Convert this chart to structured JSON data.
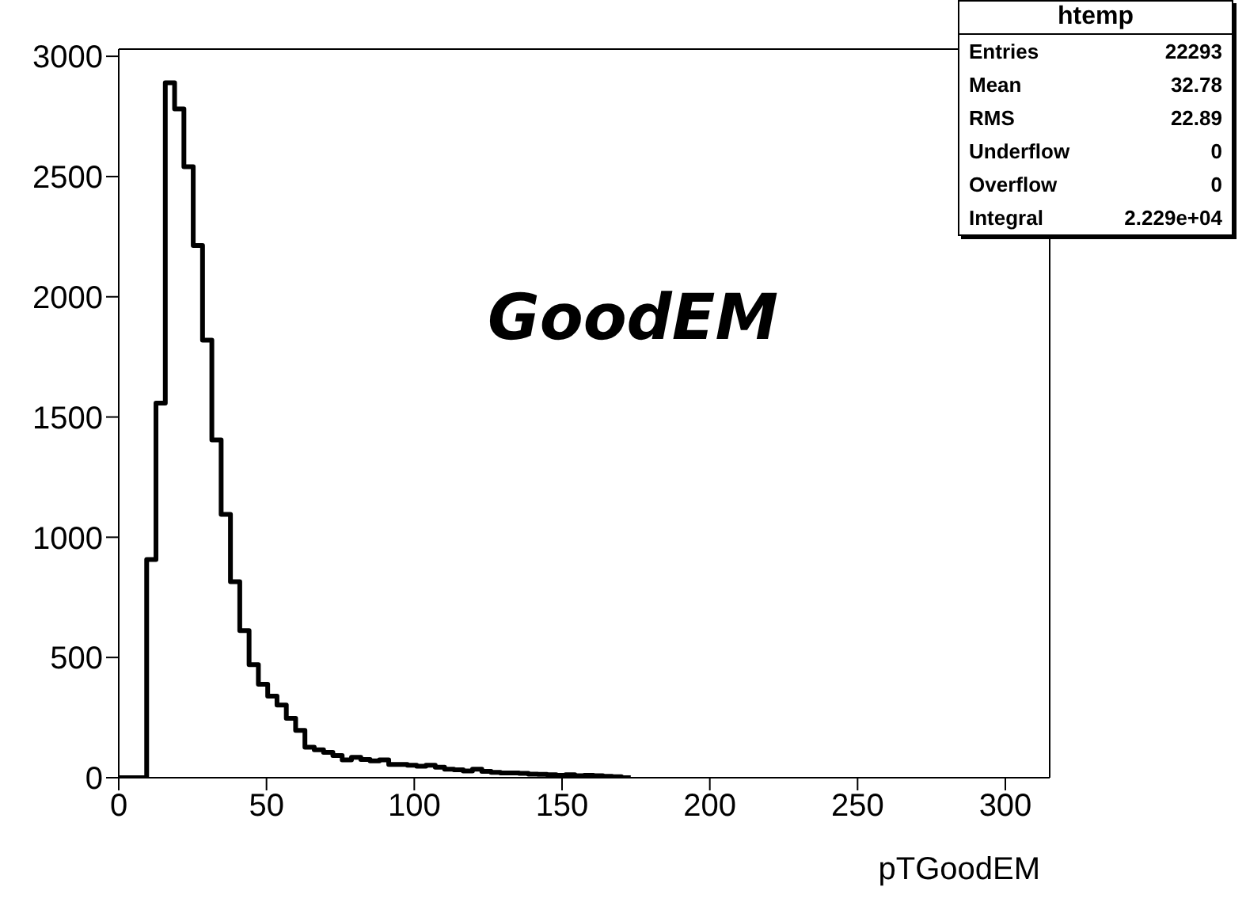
{
  "chart_data": {
    "type": "histogram",
    "xlabel": "pTGoodEM",
    "annotations": [
      "GoodEM",
      "htemp",
      "Entries 22293",
      "Mean 32.78",
      "RMS 22.89",
      "Underflow 0",
      "Overflow 0",
      "Integral 2.229e+04"
    ],
    "bins": [
      0,
      3.15,
      6.3,
      9.45,
      12.6,
      15.75,
      18.9,
      22.05,
      25.2,
      28.35,
      31.5,
      34.65,
      37.8,
      40.95,
      44.1,
      47.25,
      50.4,
      53.55,
      56.7,
      59.85,
      63,
      66.15,
      69.3,
      72.45,
      75.6,
      78.75,
      81.9,
      85.05,
      88.2,
      91.35,
      94.5,
      97.65,
      100.8,
      103.95,
      107.1,
      110.25,
      113.4,
      116.55,
      119.7,
      122.85,
      126,
      129.15,
      132.3,
      135.45,
      138.6,
      141.75,
      144.9,
      148.05,
      151.2,
      154.35,
      157.5,
      160.65,
      163.8,
      166.95,
      170.1,
      173.25
    ],
    "values": [
      0,
      0,
      0,
      907,
      1558,
      2890,
      2781,
      2541,
      2213,
      1820,
      1405,
      1095,
      815,
      612,
      470,
      389,
      339,
      302,
      247,
      197,
      127,
      116,
      105,
      92,
      74,
      85,
      76,
      70,
      74,
      55,
      55,
      52,
      48,
      52,
      44,
      35,
      33,
      28,
      35,
      26,
      22,
      20,
      20,
      18,
      15,
      14,
      12,
      10,
      12,
      8,
      10,
      8,
      6,
      4,
      0
    ],
    "color": "#000000",
    "xlim": [
      0,
      315
    ],
    "xticks": [
      0,
      50,
      100,
      150,
      200,
      250,
      300
    ],
    "ylim": [
      0,
      3030
    ],
    "yticks": [
      0,
      500,
      1000,
      1500,
      2000,
      2500,
      3000
    ],
    "grid": false
  }
}
